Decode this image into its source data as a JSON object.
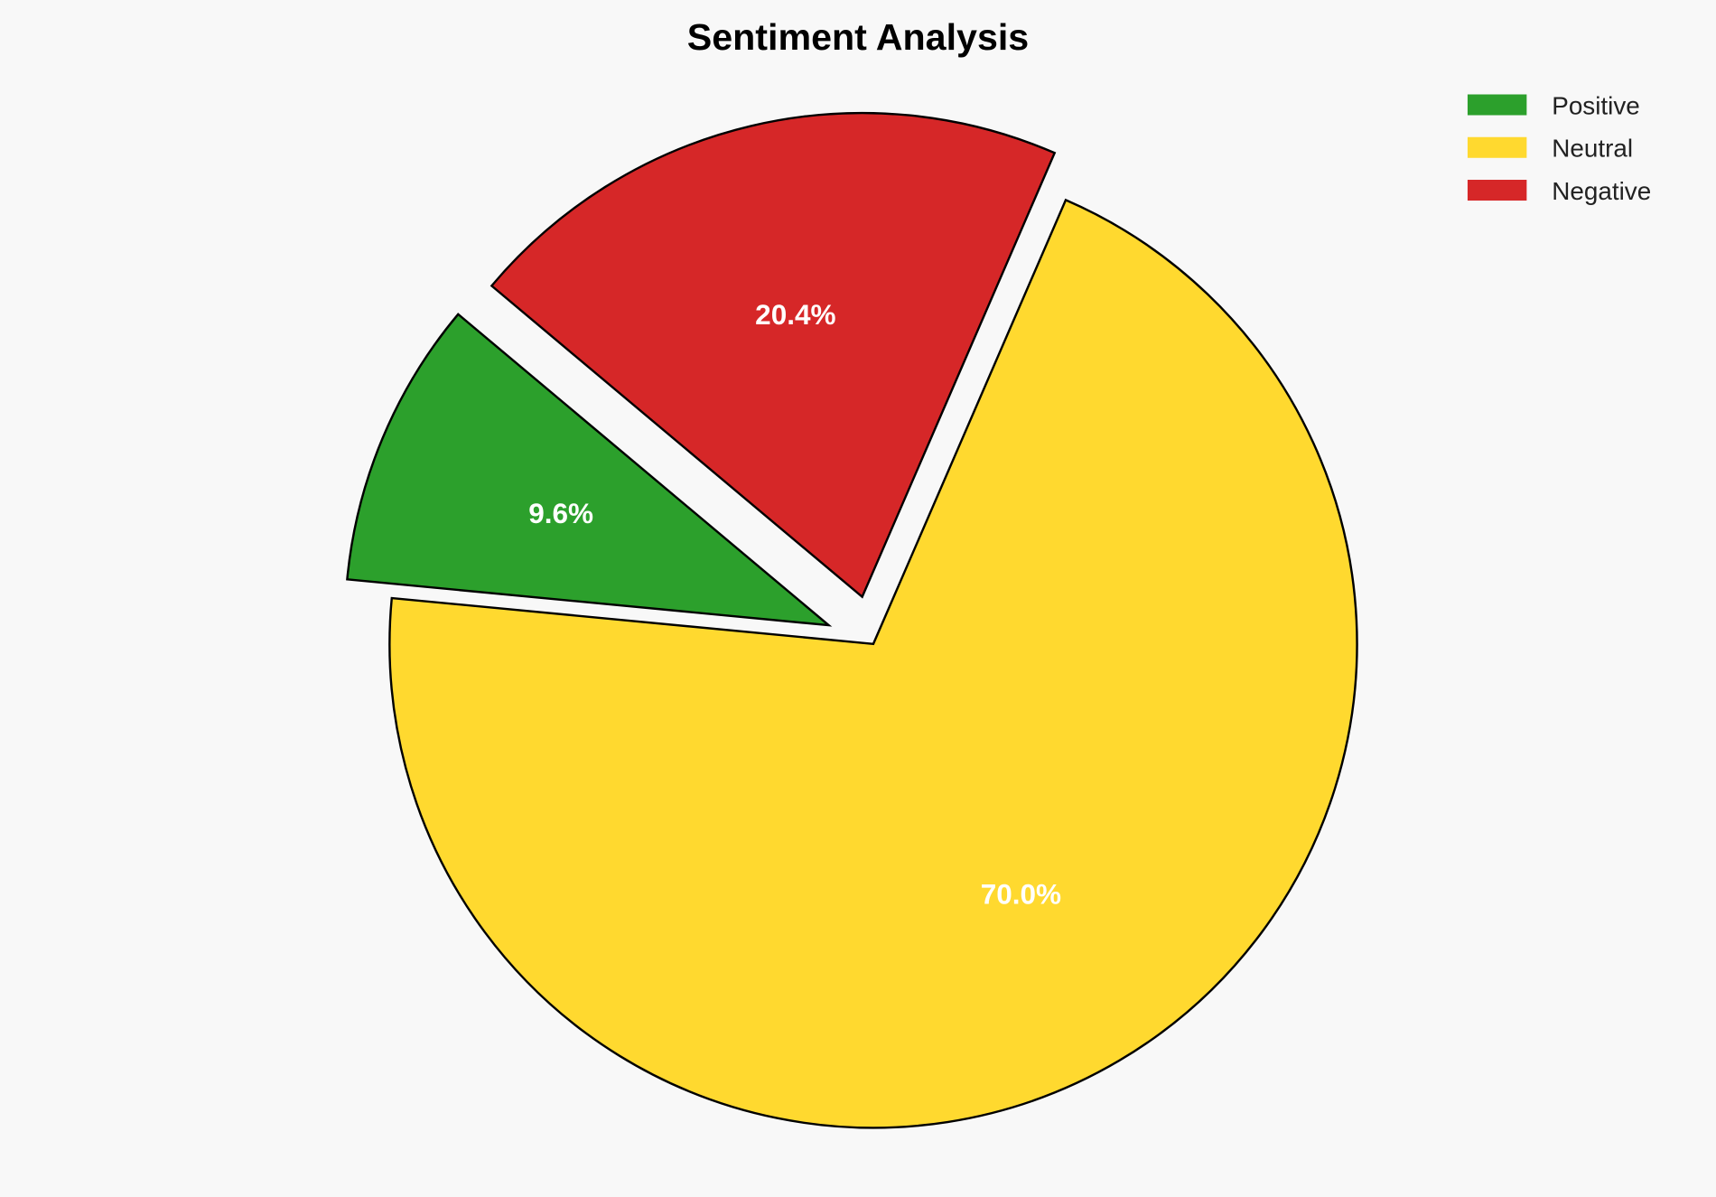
{
  "chart_data": {
    "type": "pie",
    "title": "Sentiment Analysis",
    "categories": [
      "Positive",
      "Neutral",
      "Negative"
    ],
    "values": [
      9.6,
      70.0,
      20.4
    ],
    "labels": [
      "9.6%",
      "70.0%",
      "20.4%"
    ],
    "colors": [
      "#2ca02c",
      "#ffd92f",
      "#d62728"
    ],
    "explode": [
      0.1,
      0,
      0.1
    ],
    "start_angle": 140,
    "legend_position": "top-right",
    "edge_color": "#000000",
    "background": "#f8f8f8"
  }
}
